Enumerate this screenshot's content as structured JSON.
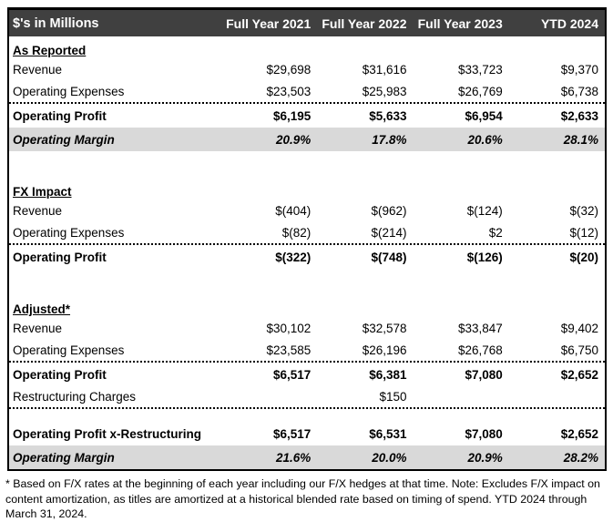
{
  "chart_data": {
    "type": "table",
    "title": "$'s in Millions",
    "columns": [
      "Full Year 2021",
      "Full Year 2022",
      "Full Year 2023",
      "YTD 2024"
    ],
    "rows": [
      {
        "type": "section",
        "label": "As Reported"
      },
      {
        "type": "data",
        "label": "Revenue",
        "values": [
          "$29,698",
          "$31,616",
          "$33,723",
          "$9,370"
        ]
      },
      {
        "type": "data",
        "label": "Operating Expenses",
        "values": [
          "$23,503",
          "$25,983",
          "$26,769",
          "$6,738"
        ]
      },
      {
        "type": "total",
        "label": "Operating Profit",
        "values": [
          "$6,195",
          "$5,633",
          "$6,954",
          "$2,633"
        ]
      },
      {
        "type": "margin",
        "label": "Operating Margin",
        "values": [
          "20.9%",
          "17.8%",
          "20.6%",
          "28.1%"
        ]
      },
      {
        "type": "spacer"
      },
      {
        "type": "section",
        "label": "FX Impact"
      },
      {
        "type": "data",
        "label": "Revenue",
        "values": [
          "$(404)",
          "$(962)",
          "$(124)",
          "$(32)"
        ]
      },
      {
        "type": "data",
        "label": "Operating Expenses",
        "values": [
          "$(82)",
          "$(214)",
          "$2",
          "$(12)"
        ]
      },
      {
        "type": "total",
        "label": "Operating Profit",
        "values": [
          "$(322)",
          "$(748)",
          "$(126)",
          "$(20)"
        ]
      },
      {
        "type": "spacer"
      },
      {
        "type": "section",
        "label": "Adjusted*"
      },
      {
        "type": "data",
        "label": "Revenue",
        "values": [
          "$30,102",
          "$32,578",
          "$33,847",
          "$9,402"
        ]
      },
      {
        "type": "data",
        "label": "Operating Expenses",
        "values": [
          "$23,585",
          "$26,196",
          "$26,768",
          "$6,750"
        ]
      },
      {
        "type": "total",
        "label": "Operating Profit",
        "values": [
          "$6,517",
          "$6,381",
          "$7,080",
          "$2,652"
        ]
      },
      {
        "type": "data",
        "label": "Restructuring Charges",
        "values": [
          "",
          "$150",
          "",
          ""
        ]
      },
      {
        "type": "spacer-small"
      },
      {
        "type": "total",
        "label": "Operating Profit x-Restructuring",
        "values": [
          "$6,517",
          "$6,531",
          "$7,080",
          "$2,652"
        ]
      },
      {
        "type": "margin",
        "label": "Operating Margin",
        "values": [
          "21.6%",
          "20.0%",
          "20.9%",
          "28.2%"
        ]
      }
    ],
    "footnote": "* Based on F/X rates at the beginning of each year including our F/X hedges at that time. Note: Excludes F/X impact on content amortization, as titles are amortized at a historical blended rate based on timing of spend. YTD 2024 through March 31, 2024.",
    "layout": {
      "grid": "horizontal dotted separators above profit rows",
      "legend": "none"
    }
  },
  "colors": {
    "header_bg": "#404040",
    "header_text": "#ffffff",
    "margin_row_bg": "#d9d9d9",
    "border": "#000000",
    "body_text": "#000000"
  }
}
